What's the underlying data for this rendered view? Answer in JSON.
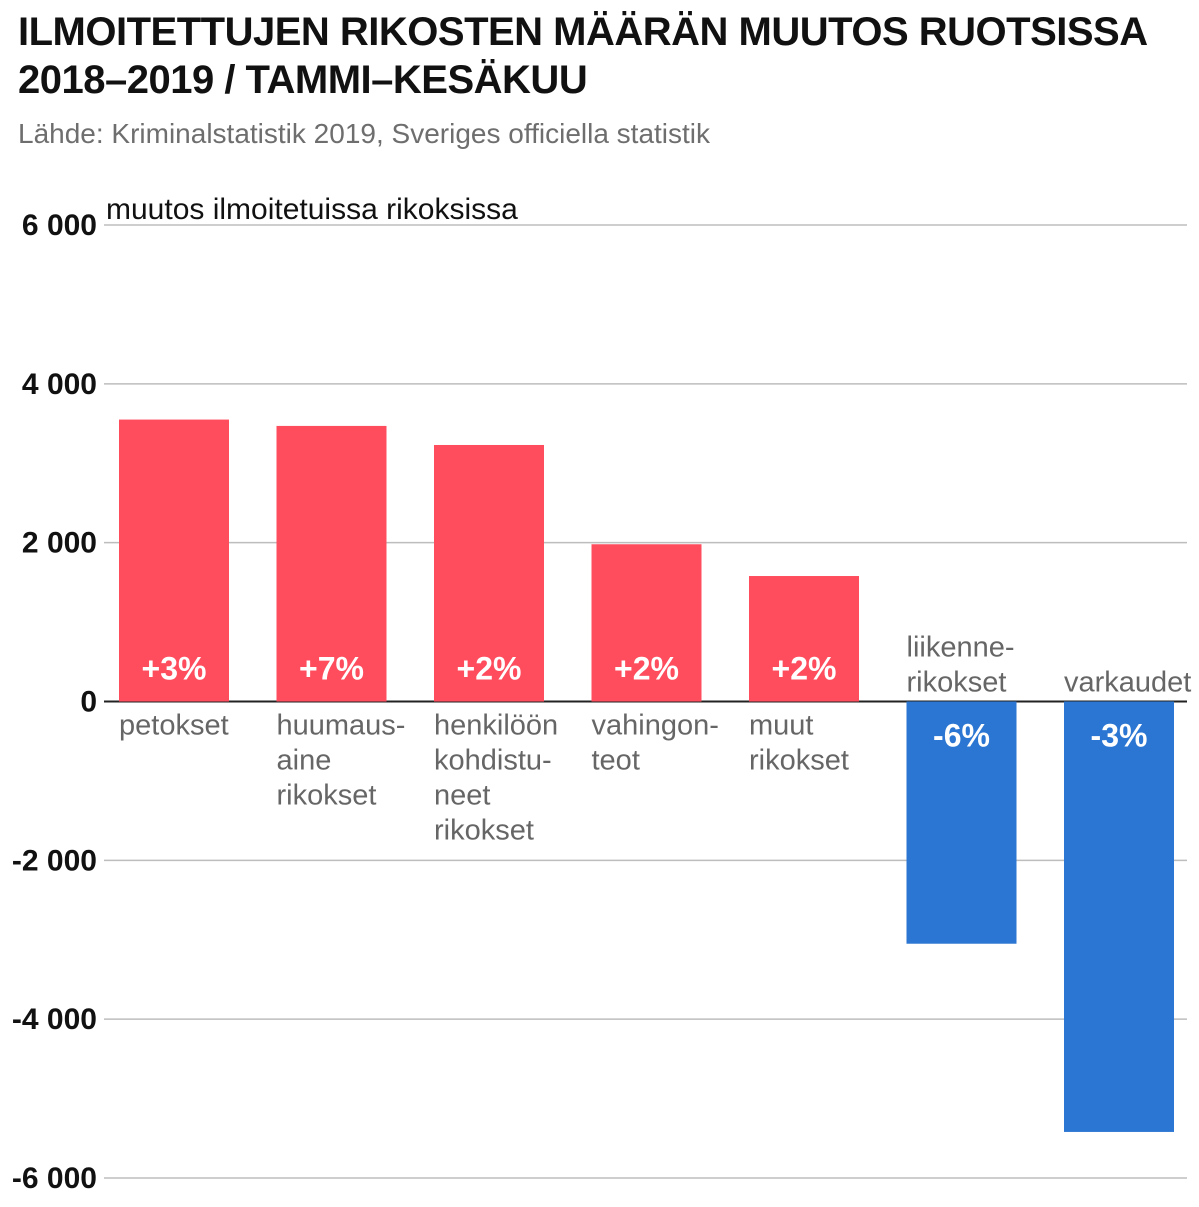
{
  "title_lines": [
    "ILMOITETTUJEN RIKOSTEN MÄÄRÄN MUUTOS RUOTSISSA",
    "2018–2019 / TAMMI–KESÄKUU"
  ],
  "subtitle": "Lähde: Kriminalstatistik 2019, Sveriges officiella statistik",
  "colors": {
    "positive": "#ff4d5e",
    "negative": "#2b76d2",
    "gridline": "#bdbdbd",
    "axis_label": "#111111",
    "category_label": "#666666",
    "bar_label": "#ffffff"
  },
  "chart_data": {
    "type": "bar",
    "title": "ILMOITETTUJEN RIKOSTEN MÄÄRÄN MUUTOS RUOTSISSA 2018–2019 / TAMMI–KESÄKUU",
    "subtitle": "Lähde: Kriminalstatistik 2019, Sveriges officiella statistik",
    "xlabel": "",
    "ylabel": "muutos ilmoitetuissa rikoksissa",
    "ylim": [
      -6000,
      6000
    ],
    "yticks": [
      6000,
      4000,
      2000,
      0,
      -2000,
      -4000,
      -6000
    ],
    "ytick_labels": [
      "6 000",
      "4 000",
      "2 000",
      "0",
      "-2 000",
      "-4 000",
      "-6 000"
    ],
    "grid": true,
    "categories": [
      "petokset",
      "huumausaine rikokset",
      "henkilöön kohdistuneet rikokset",
      "vahingonteot",
      "muut rikokset",
      "liikennerikokset",
      "varkaudet"
    ],
    "category_label_lines": [
      [
        "petokset"
      ],
      [
        "huumaus-",
        "aine",
        "rikokset"
      ],
      [
        "henkilöön",
        "kohdistu-",
        "neet",
        "rikokset"
      ],
      [
        "vahingon-",
        "teot"
      ],
      [
        "muut",
        "rikokset"
      ],
      [
        "liikenne-",
        "rikokset"
      ],
      [
        "varkaudet"
      ]
    ],
    "values": [
      3550,
      3470,
      3230,
      1980,
      1580,
      -3050,
      -5420
    ],
    "data_labels": [
      "+3%",
      "+7%",
      "+2%",
      "+2%",
      "+2%",
      "-6%",
      "-3%"
    ]
  }
}
